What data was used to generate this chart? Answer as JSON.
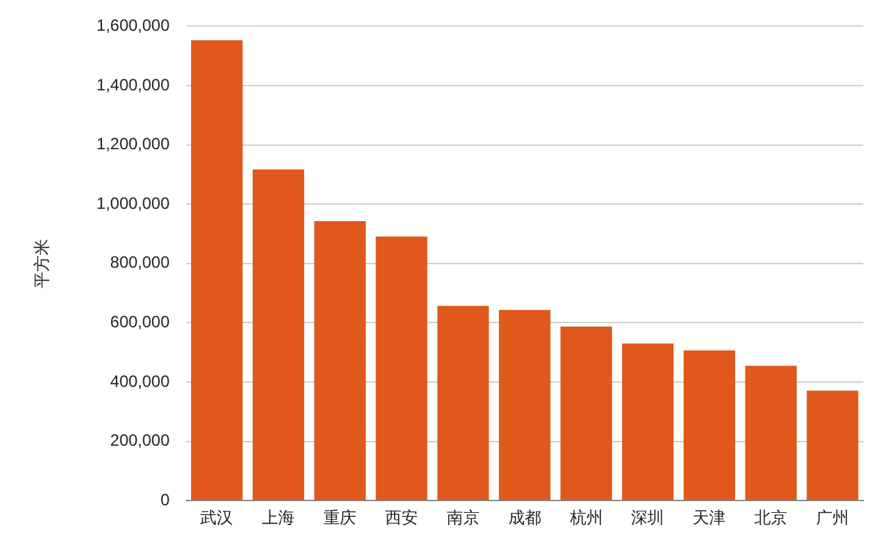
{
  "chart_data": {
    "type": "bar",
    "ylabel": "平方米",
    "categories": [
      "武汉",
      "上海",
      "重庆",
      "西安",
      "南京",
      "成都",
      "杭州",
      "深圳",
      "天津",
      "北京",
      "广州"
    ],
    "values": [
      1553000,
      1117000,
      943000,
      891000,
      657000,
      643000,
      587000,
      530000,
      507000,
      455000,
      371000
    ],
    "color": "#e0581b",
    "ylim": [
      0,
      1600000
    ],
    "yticks": [
      0,
      {
        "value": 200000,
        "label": "200,000"
      },
      {
        "value": 400000,
        "label": "400,000"
      },
      {
        "value": 600000,
        "label": "600,000"
      },
      {
        "value": 800000,
        "label": "800,000"
      },
      {
        "value": 1000000,
        "label": "1,000,000"
      },
      {
        "value": 1200000,
        "label": "1,200,000"
      },
      {
        "value": 1400000,
        "label": "1,400,000"
      },
      {
        "value": 1600000,
        "label": "1,600,000"
      }
    ],
    "grid": "y",
    "legend": false
  }
}
